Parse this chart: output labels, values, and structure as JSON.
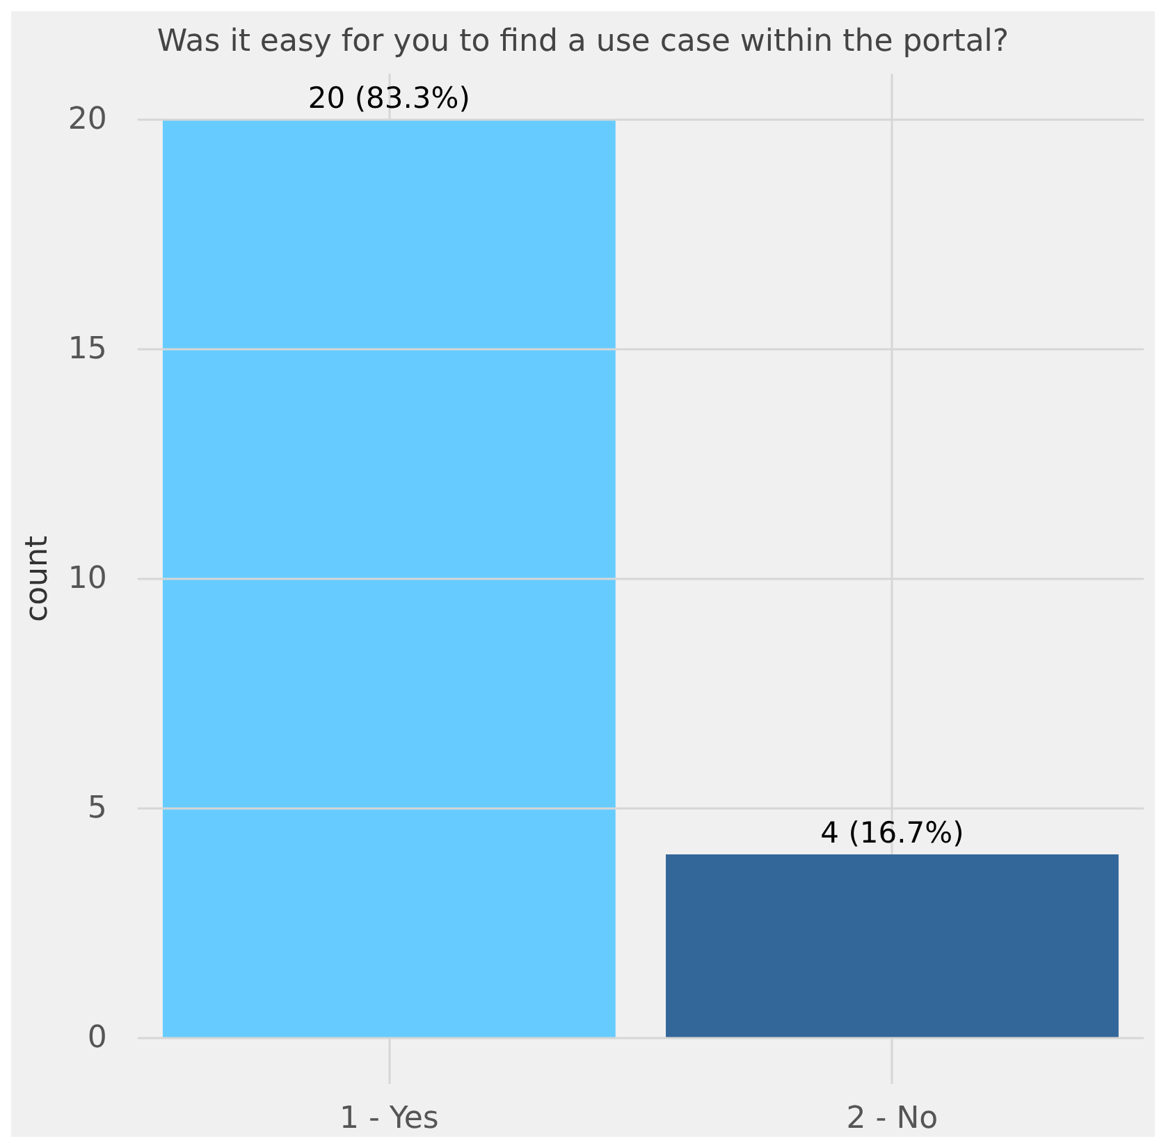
{
  "chart_data": {
    "type": "bar",
    "title": "Was it easy for you to find a use case within the portal?",
    "ylabel": "count",
    "categories": [
      "1 - Yes",
      "2 - No"
    ],
    "values": [
      20,
      4
    ],
    "colors": [
      "#66ccff",
      "#336699"
    ],
    "value_labels": [
      "20 (83.3%)",
      "4 (16.7%)"
    ],
    "ylim": [
      -1,
      21
    ],
    "yticks": [
      0,
      5,
      10,
      15,
      20
    ],
    "grid": true
  }
}
